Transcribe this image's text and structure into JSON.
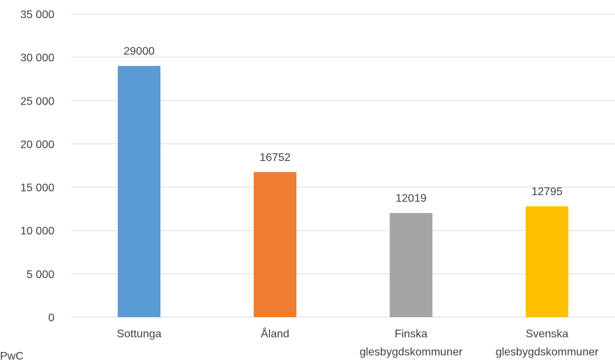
{
  "chart_data": {
    "type": "bar",
    "categories": [
      "Sottunga",
      "Åland",
      "Finska glesbygdskommuner",
      "Svenska glesbygdskommuner"
    ],
    "values": [
      29000,
      16752,
      12019,
      12795
    ],
    "colors": [
      "#5b9bd5",
      "#ed7d31",
      "#a5a5a5",
      "#ffc000"
    ],
    "ylim": [
      0,
      35000
    ],
    "yticks": [
      0,
      {
        "value": 5000,
        "label": "5 000"
      },
      {
        "value": 10000,
        "label": "10 000"
      },
      {
        "value": 15000,
        "label": "15 000"
      },
      {
        "value": 20000,
        "label": "20 000"
      },
      {
        "value": 25000,
        "label": "25 000"
      },
      {
        "value": 30000,
        "label": "30 000"
      },
      {
        "value": 35000,
        "label": "35 000"
      }
    ],
    "grid": true,
    "source": "PwC"
  }
}
